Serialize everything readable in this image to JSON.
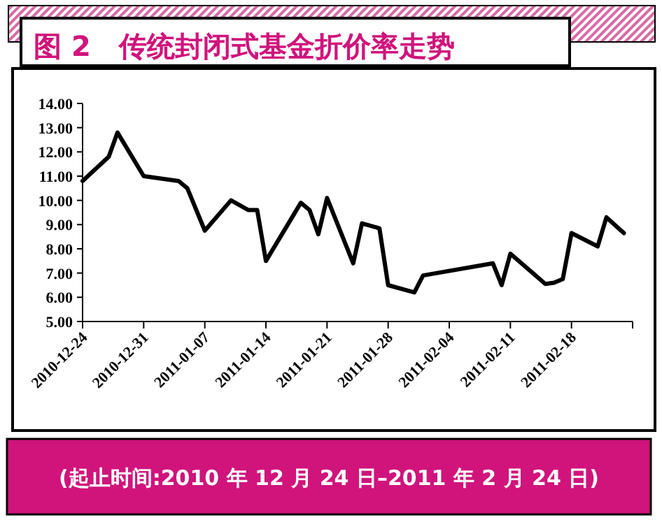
{
  "chart_data": {
    "type": "line",
    "title": "图 2　传统封闭式基金折价率走势",
    "x": [
      "2010-12-24",
      "2010-12-27",
      "2010-12-28",
      "2010-12-31",
      "2011-01-04",
      "2011-01-05",
      "2011-01-07",
      "2011-01-10",
      "2011-01-12",
      "2011-01-13",
      "2011-01-14",
      "2011-01-18",
      "2011-01-19",
      "2011-01-20",
      "2011-01-21",
      "2011-01-24",
      "2011-01-25",
      "2011-01-27",
      "2011-01-28",
      "2011-01-31",
      "2011-02-01",
      "2011-02-09",
      "2011-02-10",
      "2011-02-11",
      "2011-02-15",
      "2011-02-16",
      "2011-02-17",
      "2011-02-18",
      "2011-02-21",
      "2011-02-22",
      "2011-02-24"
    ],
    "series": [
      {
        "color": "#000000",
        "values": [
          10.8,
          11.8,
          12.8,
          11.0,
          10.8,
          10.5,
          8.75,
          10.0,
          9.6,
          9.6,
          7.5,
          9.9,
          9.6,
          8.6,
          10.1,
          7.4,
          9.05,
          8.85,
          6.5,
          6.2,
          6.9,
          7.4,
          6.5,
          7.8,
          6.55,
          6.6,
          6.75,
          8.65,
          8.1,
          9.3,
          8.65
        ]
      }
    ],
    "xlim": [
      "2010-12-24",
      "2011-02-25"
    ],
    "xticks": [
      {
        "value": "2010-12-24",
        "label": "2010-12-24"
      },
      {
        "value": "2010-12-31",
        "label": "2010-12-31"
      },
      {
        "value": "2011-01-07",
        "label": "2011-01-07"
      },
      {
        "value": "2011-01-14",
        "label": "2011-01-14"
      },
      {
        "value": "2011-01-21",
        "label": "2011-01-21"
      },
      {
        "value": "2011-01-28",
        "label": "2011-01-28"
      },
      {
        "value": "2011-02-04",
        "label": "2011-02-04"
      },
      {
        "value": "2011-02-11",
        "label": "2011-02-11"
      },
      {
        "value": "2011-02-18",
        "label": "2011-02-18"
      },
      {
        "value": "2011-02-25",
        "label": null
      }
    ],
    "ylim": [
      5,
      14
    ],
    "yticks": [
      {
        "value": 5,
        "label": "5.00"
      },
      {
        "value": 6,
        "label": "6.00"
      },
      {
        "value": 7,
        "label": "7.00"
      },
      {
        "value": 8,
        "label": "8.00"
      },
      {
        "value": 9,
        "label": "9.00"
      },
      {
        "value": 10,
        "label": "10.00"
      },
      {
        "value": 11,
        "label": "11.00"
      },
      {
        "value": 12,
        "label": "12.00"
      },
      {
        "value": 13,
        "label": "13.00"
      },
      {
        "value": 14,
        "label": "14.00"
      }
    ],
    "annotations": [
      "(起止时间:2010 年 12 月 24 日–2011 年 2 月 24 日)"
    ]
  }
}
